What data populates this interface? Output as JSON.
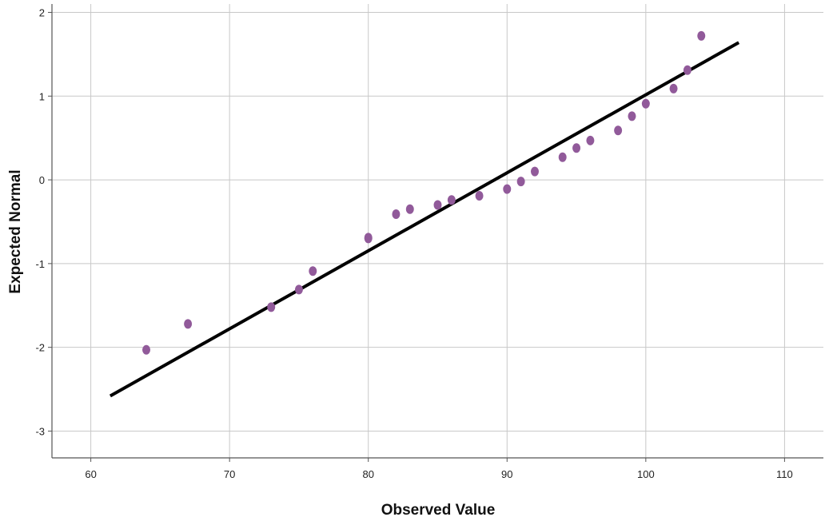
{
  "chart_data": {
    "type": "scatter",
    "xlabel": "Observed Value",
    "ylabel": "Expected Normal",
    "xlim": [
      57.2,
      112.8
    ],
    "ylim": [
      -3.32,
      2.1
    ],
    "xticks": [
      60,
      70,
      80,
      90,
      100,
      110
    ],
    "yticks": [
      2,
      1,
      0,
      -1,
      -2,
      -3
    ],
    "grid": true,
    "points": [
      {
        "x": 64,
        "y": -2.03
      },
      {
        "x": 67,
        "y": -1.72
      },
      {
        "x": 73,
        "y": -1.52
      },
      {
        "x": 75,
        "y": -1.31
      },
      {
        "x": 76,
        "y": -1.09
      },
      {
        "x": 80,
        "y": -0.69
      },
      {
        "x": 80,
        "y": -0.7
      },
      {
        "x": 82,
        "y": -0.41
      },
      {
        "x": 83,
        "y": -0.35
      },
      {
        "x": 85,
        "y": -0.3
      },
      {
        "x": 86,
        "y": -0.24
      },
      {
        "x": 88,
        "y": -0.19
      },
      {
        "x": 90,
        "y": -0.11
      },
      {
        "x": 91,
        "y": -0.02
      },
      {
        "x": 92,
        "y": 0.1
      },
      {
        "x": 94,
        "y": 0.27
      },
      {
        "x": 95,
        "y": 0.38
      },
      {
        "x": 96,
        "y": 0.47
      },
      {
        "x": 98,
        "y": 0.59
      },
      {
        "x": 99,
        "y": 0.76
      },
      {
        "x": 100,
        "y": 0.91
      },
      {
        "x": 102,
        "y": 1.09
      },
      {
        "x": 103,
        "y": 1.31
      },
      {
        "x": 104,
        "y": 1.72
      }
    ],
    "reference_line": {
      "x": [
        61.4,
        106.7
      ],
      "y": [
        -2.58,
        1.64
      ]
    },
    "colors": {
      "points": "#915a9a",
      "line": "#000000",
      "grid": "#c8c8c8",
      "axis": "#555555"
    }
  }
}
